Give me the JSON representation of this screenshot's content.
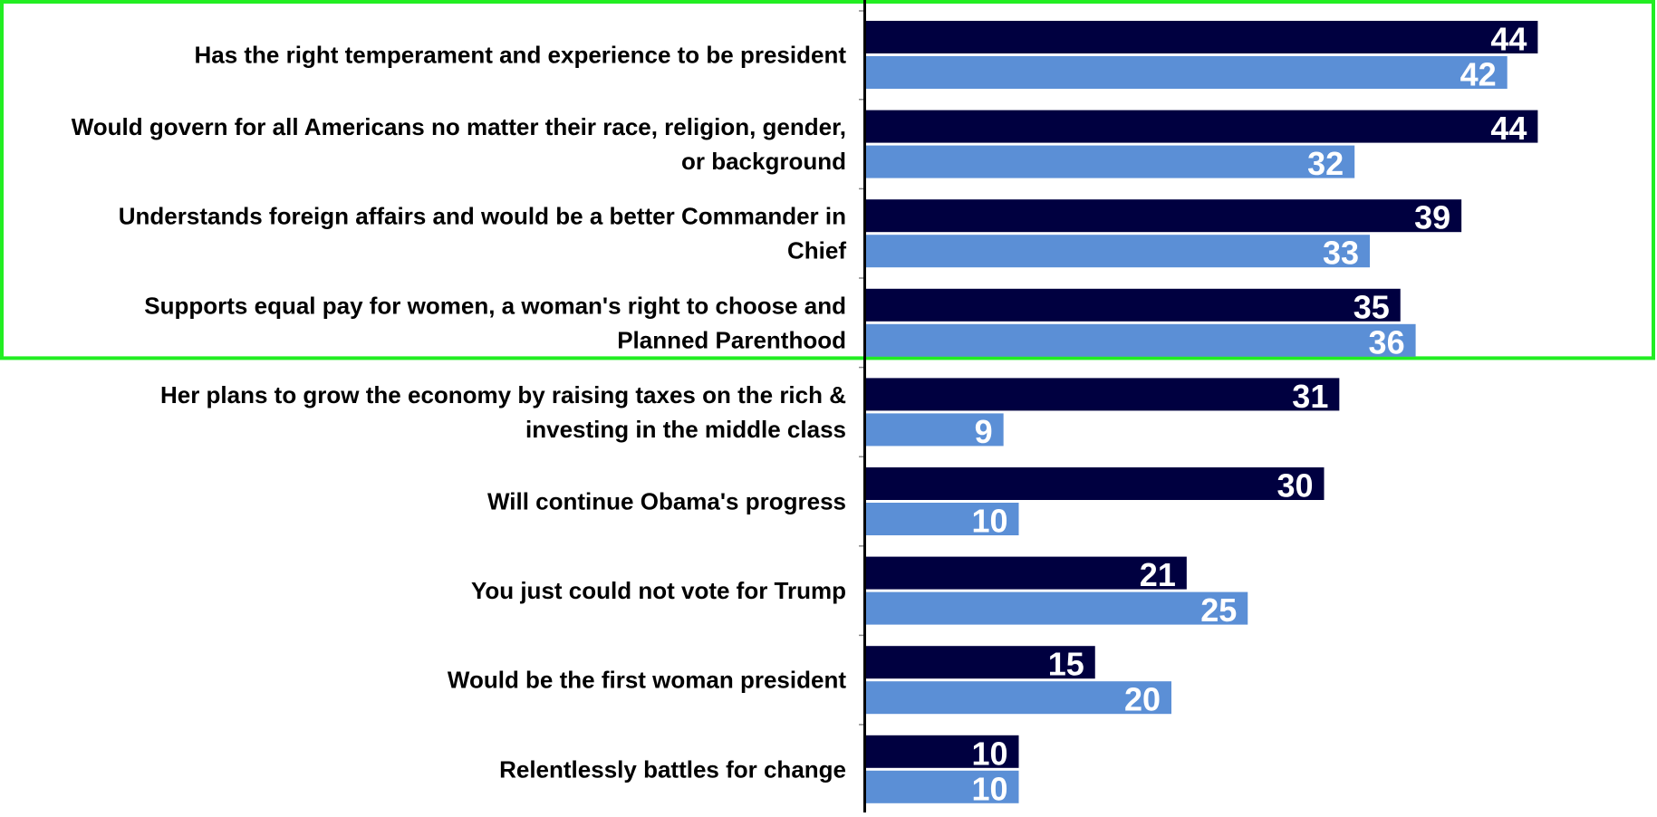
{
  "chart_data": {
    "type": "bar",
    "orientation": "horizontal",
    "categories": [
      [
        "Has the right temperament and experience to be president"
      ],
      [
        "Would govern for all Americans no matter their race, religion, gender,",
        "or background"
      ],
      [
        "Understands foreign affairs and would be a better Commander in",
        "Chief"
      ],
      [
        "Supports equal pay for women, a woman's right to choose and",
        "Planned Parenthood"
      ],
      [
        "Her plans to grow the economy by raising taxes on the rich &",
        "investing in the middle class"
      ],
      [
        "Will continue Obama's progress"
      ],
      [
        "You just could not vote for Trump"
      ],
      [
        "Would be the first woman president"
      ],
      [
        "Relentlessly battles for change"
      ]
    ],
    "series": [
      {
        "values": [
          44,
          44,
          39,
          35,
          31,
          30,
          21,
          15,
          10
        ],
        "color": "#000040"
      },
      {
        "values": [
          42,
          32,
          33,
          36,
          9,
          10,
          25,
          20,
          10
        ],
        "color": "#5b8fd6"
      }
    ],
    "xlim": [
      0,
      100
    ],
    "grid": false,
    "data_labels": true,
    "axis_color": "#000000",
    "highlight": {
      "first_category_index": 0,
      "last_category_index": 3,
      "color": "#22ee22"
    }
  }
}
